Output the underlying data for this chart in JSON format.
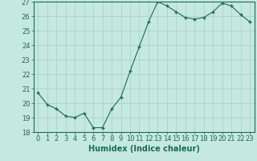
{
  "x": [
    0,
    1,
    2,
    3,
    4,
    5,
    6,
    7,
    8,
    9,
    10,
    11,
    12,
    13,
    14,
    15,
    16,
    17,
    18,
    19,
    20,
    21,
    22,
    23
  ],
  "y": [
    20.7,
    19.9,
    19.6,
    19.1,
    19.0,
    19.3,
    18.3,
    18.3,
    19.6,
    20.4,
    22.2,
    23.9,
    25.6,
    27.0,
    26.7,
    26.3,
    25.9,
    25.8,
    25.9,
    26.3,
    26.9,
    26.7,
    26.1,
    25.6
  ],
  "line_color": "#1a6b5a",
  "marker_color": "#1a6b5a",
  "bg_color": "#c5e8e0",
  "grid_color": "#a8cec8",
  "xlabel": "Humidex (Indice chaleur)",
  "ylim": [
    18,
    27
  ],
  "xlim_min": -0.5,
  "xlim_max": 23.5,
  "yticks": [
    18,
    19,
    20,
    21,
    22,
    23,
    24,
    25,
    26,
    27
  ],
  "xticks": [
    0,
    1,
    2,
    3,
    4,
    5,
    6,
    7,
    8,
    9,
    10,
    11,
    12,
    13,
    14,
    15,
    16,
    17,
    18,
    19,
    20,
    21,
    22,
    23
  ],
  "tick_color": "#1a6b5a",
  "label_fontsize": 7,
  "tick_fontsize": 6,
  "spine_color": "#1a6b5a"
}
